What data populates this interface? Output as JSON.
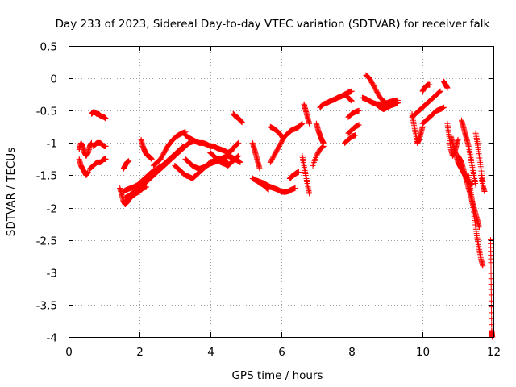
{
  "chart_data": {
    "type": "scatter",
    "title": "Day 233 of 2023, Sidereal Day-to-day VTEC variation (SDTVAR) for receiver falk",
    "xlabel": "GPS time / hours",
    "ylabel": "SDTVAR / TECUs",
    "xlim": [
      0,
      12
    ],
    "ylim": [
      -4,
      0.5
    ],
    "xticks": [
      0,
      2,
      4,
      6,
      8,
      10,
      12
    ],
    "xtick_labels": [
      "0",
      "2",
      "4",
      "6",
      "8",
      "10",
      "12"
    ],
    "yticks": [
      0.5,
      0,
      -0.5,
      -1,
      -1.5,
      -2,
      -2.5,
      -3,
      -3.5,
      -4
    ],
    "ytick_labels": [
      "0.5",
      "0",
      "-0.5",
      "-1",
      "-1.5",
      "-2",
      "-2.5",
      "-3",
      "-3.5",
      "-4"
    ],
    "grid": true,
    "marker": "+",
    "color": "#ff0000",
    "segments": [
      {
        "x": [
          0.3,
          0.35,
          0.4,
          0.45,
          0.5,
          0.55,
          0.6,
          0.65
        ],
        "y": [
          -1.1,
          -1.0,
          -1.05,
          -1.15,
          -1.2,
          -1.15,
          -1.05,
          -1.0
        ]
      },
      {
        "x": [
          0.3,
          0.35,
          0.4,
          0.45,
          0.5,
          0.55
        ],
        "y": [
          -1.25,
          -1.35,
          -1.4,
          -1.45,
          -1.5,
          -1.45
        ]
      },
      {
        "x": [
          0.6,
          0.7,
          0.8,
          0.9,
          1.0,
          1.05
        ],
        "y": [
          -1.4,
          -1.35,
          -1.3,
          -1.3,
          -1.25,
          -1.25
        ]
      },
      {
        "x": [
          0.7,
          0.8,
          0.9,
          1.0,
          1.05
        ],
        "y": [
          -1.05,
          -1.0,
          -1.0,
          -1.05,
          -1.05
        ]
      },
      {
        "x": [
          0.65,
          0.7,
          0.75,
          0.8,
          0.85,
          0.9,
          1.0,
          1.05
        ],
        "y": [
          -0.55,
          -0.52,
          -0.53,
          -0.55,
          -0.55,
          -0.58,
          -0.6,
          -0.62
        ]
      },
      {
        "x": [
          1.45,
          1.5,
          1.55,
          1.6,
          1.65,
          1.7,
          1.8,
          1.9,
          2.0,
          2.1,
          2.2
        ],
        "y": [
          -1.7,
          -1.8,
          -1.9,
          -1.95,
          -1.92,
          -1.88,
          -1.82,
          -1.78,
          -1.75,
          -1.7,
          -1.68
        ]
      },
      {
        "x": [
          1.55,
          1.6,
          1.65,
          1.7
        ],
        "y": [
          -1.4,
          -1.35,
          -1.3,
          -1.28
        ]
      },
      {
        "x": [
          1.55,
          1.65,
          1.75,
          1.85,
          1.95,
          2.05,
          2.15,
          2.25,
          2.35,
          2.45,
          2.55,
          2.65,
          2.75,
          2.85,
          2.95,
          3.05,
          3.15,
          3.25
        ],
        "y": [
          -1.75,
          -1.72,
          -1.7,
          -1.68,
          -1.65,
          -1.6,
          -1.55,
          -1.5,
          -1.45,
          -1.42,
          -1.38,
          -1.35,
          -1.3,
          -1.25,
          -1.2,
          -1.15,
          -1.1,
          -1.05
        ]
      },
      {
        "x": [
          1.6,
          1.7,
          1.8,
          1.9,
          2.0,
          2.1,
          2.2,
          2.3,
          2.4,
          2.5,
          2.6,
          2.7,
          2.8,
          2.9,
          3.0,
          3.1,
          3.2,
          3.3,
          3.4,
          3.5
        ],
        "y": [
          -1.85,
          -1.82,
          -1.78,
          -1.75,
          -1.7,
          -1.65,
          -1.6,
          -1.55,
          -1.5,
          -1.45,
          -1.4,
          -1.35,
          -1.3,
          -1.25,
          -1.2,
          -1.15,
          -1.1,
          -1.05,
          -1.0,
          -0.98
        ]
      },
      {
        "x": [
          2.05,
          2.1,
          2.15,
          2.2,
          2.25,
          2.3,
          2.35
        ],
        "y": [
          -0.95,
          -1.05,
          -1.12,
          -1.18,
          -1.2,
          -1.22,
          -1.25
        ]
      },
      {
        "x": [
          2.4,
          2.5,
          2.6,
          2.7,
          2.8,
          2.9,
          3.0,
          3.1,
          3.2,
          3.3
        ],
        "y": [
          -1.35,
          -1.3,
          -1.25,
          -1.15,
          -1.05,
          -0.98,
          -0.92,
          -0.88,
          -0.85,
          -0.83
        ]
      },
      {
        "x": [
          3.3,
          3.4,
          3.5,
          3.6,
          3.7,
          3.8,
          3.9,
          4.0,
          4.1,
          4.2,
          4.3,
          4.4,
          4.5,
          4.6,
          4.7,
          4.8
        ],
        "y": [
          -0.88,
          -0.92,
          -0.95,
          -0.98,
          -1.0,
          -1.0,
          -1.02,
          -1.05,
          -1.05,
          -1.08,
          -1.1,
          -1.12,
          -1.15,
          -1.12,
          -1.05,
          -1.0
        ]
      },
      {
        "x": [
          3.0,
          3.1,
          3.2,
          3.3,
          3.4,
          3.5,
          3.6,
          3.7,
          3.8,
          3.9,
          4.0,
          4.1,
          4.2,
          4.3,
          4.4,
          4.5
        ],
        "y": [
          -1.35,
          -1.4,
          -1.45,
          -1.5,
          -1.52,
          -1.55,
          -1.5,
          -1.45,
          -1.4,
          -1.35,
          -1.3,
          -1.28,
          -1.25,
          -1.25,
          -1.28,
          -1.3
        ]
      },
      {
        "x": [
          3.3,
          3.4,
          3.5,
          3.6,
          3.7,
          3.8,
          3.9,
          4.0,
          4.1,
          4.2,
          4.3,
          4.4,
          4.5,
          4.6,
          4.7,
          4.8,
          4.85
        ],
        "y": [
          -1.25,
          -1.3,
          -1.35,
          -1.38,
          -1.4,
          -1.38,
          -1.35,
          -1.32,
          -1.3,
          -1.28,
          -1.25,
          -1.22,
          -1.2,
          -1.22,
          -1.25,
          -1.28,
          -1.3
        ]
      },
      {
        "x": [
          4.0,
          4.1,
          4.2,
          4.3,
          4.4,
          4.5,
          4.6,
          4.7,
          4.8
        ],
        "y": [
          -1.15,
          -1.2,
          -1.25,
          -1.3,
          -1.32,
          -1.35,
          -1.3,
          -1.25,
          -1.2
        ]
      },
      {
        "x": [
          4.65,
          4.7,
          4.75,
          4.8,
          4.85,
          4.9
        ],
        "y": [
          -0.55,
          -0.58,
          -0.6,
          -0.62,
          -0.65,
          -0.68
        ]
      },
      {
        "x": [
          5.2,
          5.25,
          5.3,
          5.35,
          5.4
        ],
        "y": [
          -1.0,
          -1.1,
          -1.2,
          -1.3,
          -1.4
        ]
      },
      {
        "x": [
          5.2,
          5.3,
          5.4,
          5.5,
          5.6,
          5.7,
          5.8,
          5.9,
          6.0,
          6.1,
          6.2,
          6.3,
          6.4
        ],
        "y": [
          -1.55,
          -1.58,
          -1.6,
          -1.62,
          -1.65,
          -1.68,
          -1.7,
          -1.72,
          -1.75,
          -1.76,
          -1.75,
          -1.72,
          -1.7
        ]
      },
      {
        "x": [
          5.35,
          5.4,
          5.45,
          5.5,
          5.55,
          5.6,
          5.65
        ],
        "y": [
          -1.6,
          -1.62,
          -1.63,
          -1.65,
          -1.67,
          -1.7,
          -1.72
        ]
      },
      {
        "x": [
          5.7,
          5.8,
          5.9,
          6.0,
          6.1,
          6.2,
          6.3
        ],
        "y": [
          -1.3,
          -1.2,
          -1.1,
          -1.0,
          -0.9,
          -0.85,
          -0.8
        ]
      },
      {
        "x": [
          5.7,
          5.8,
          5.9,
          6.0,
          6.05
        ],
        "y": [
          -0.75,
          -0.78,
          -0.82,
          -0.88,
          -0.92
        ]
      },
      {
        "x": [
          6.2,
          6.3,
          6.4,
          6.5,
          6.6
        ],
        "y": [
          -0.85,
          -0.8,
          -0.78,
          -0.75,
          -0.7
        ]
      },
      {
        "x": [
          6.25,
          6.3,
          6.35,
          6.4,
          6.45,
          6.5
        ],
        "y": [
          -1.55,
          -1.52,
          -1.5,
          -1.48,
          -1.46,
          -1.45
        ]
      },
      {
        "x": [
          6.6,
          6.65,
          6.7,
          6.75,
          6.8
        ],
        "y": [
          -1.2,
          -1.35,
          -1.5,
          -1.65,
          -1.78
        ]
      },
      {
        "x": [
          6.65,
          6.7,
          6.75,
          6.8
        ],
        "y": [
          -0.4,
          -0.5,
          -0.6,
          -0.7
        ]
      },
      {
        "x": [
          6.9,
          7.0,
          7.1,
          7.2
        ],
        "y": [
          -1.35,
          -1.2,
          -1.1,
          -1.05
        ]
      },
      {
        "x": [
          7.0,
          7.05,
          7.1,
          7.15,
          7.2
        ],
        "y": [
          -0.7,
          -0.8,
          -0.88,
          -0.95,
          -1.0
        ]
      },
      {
        "x": [
          7.1,
          7.2,
          7.3,
          7.4,
          7.5,
          7.6,
          7.7,
          7.8,
          7.9,
          8.0
        ],
        "y": [
          -0.45,
          -0.4,
          -0.38,
          -0.35,
          -0.33,
          -0.3,
          -0.28,
          -0.25,
          -0.22,
          -0.2
        ]
      },
      {
        "x": [
          7.8,
          7.9,
          8.0
        ],
        "y": [
          -0.25,
          -0.3,
          -0.35
        ]
      },
      {
        "x": [
          7.8,
          7.9,
          8.0,
          8.1
        ],
        "y": [
          -1.0,
          -0.95,
          -0.9,
          -0.88
        ]
      },
      {
        "x": [
          7.9,
          8.0,
          8.1,
          8.2
        ],
        "y": [
          -0.85,
          -0.8,
          -0.75,
          -0.72
        ]
      },
      {
        "x": [
          7.9,
          8.0,
          8.1,
          8.2
        ],
        "y": [
          -0.6,
          -0.55,
          -0.52,
          -0.5
        ]
      },
      {
        "x": [
          8.3,
          8.4,
          8.5,
          8.6,
          8.7,
          8.8,
          8.9,
          9.0,
          9.1,
          9.2,
          9.3
        ],
        "y": [
          -0.3,
          -0.32,
          -0.35,
          -0.38,
          -0.4,
          -0.4,
          -0.4,
          -0.38,
          -0.36,
          -0.35,
          -0.34
        ]
      },
      {
        "x": [
          8.4,
          8.5,
          8.6,
          8.7,
          8.8,
          8.9,
          9.0,
          9.1,
          9.2,
          9.3
        ],
        "y": [
          0.05,
          0.0,
          -0.1,
          -0.2,
          -0.3,
          -0.35,
          -0.4,
          -0.42,
          -0.4,
          -0.38
        ]
      },
      {
        "x": [
          8.7,
          8.8,
          8.9,
          9.0,
          9.1,
          9.2,
          9.3
        ],
        "y": [
          -0.4,
          -0.45,
          -0.48,
          -0.45,
          -0.42,
          -0.4,
          -0.38
        ]
      },
      {
        "x": [
          9.7,
          9.75,
          9.8,
          9.85,
          9.9,
          9.95,
          10.0
        ],
        "y": [
          -0.55,
          -0.7,
          -0.85,
          -1.0,
          -0.95,
          -0.85,
          -0.75
        ]
      },
      {
        "x": [
          9.7,
          9.8,
          9.9,
          10.0,
          10.1,
          10.2,
          10.3,
          10.4,
          10.5
        ],
        "y": [
          -0.6,
          -0.55,
          -0.5,
          -0.45,
          -0.4,
          -0.35,
          -0.3,
          -0.25,
          -0.2
        ]
      },
      {
        "x": [
          10.0,
          10.1,
          10.2,
          10.3,
          10.4,
          10.5,
          10.6
        ],
        "y": [
          -0.7,
          -0.65,
          -0.6,
          -0.55,
          -0.5,
          -0.48,
          -0.45
        ]
      },
      {
        "x": [
          10.0,
          10.05,
          10.1,
          10.15,
          10.2
        ],
        "y": [
          -0.2,
          -0.15,
          -0.12,
          -0.1,
          -0.1
        ]
      },
      {
        "x": [
          10.6,
          10.65,
          10.7
        ],
        "y": [
          -0.05,
          -0.1,
          -0.15
        ]
      },
      {
        "x": [
          10.7,
          10.75,
          10.8,
          10.85,
          10.9,
          10.95,
          11.0
        ],
        "y": [
          -0.7,
          -0.9,
          -1.1,
          -1.2,
          -1.15,
          -1.05,
          -0.95
        ]
      },
      {
        "x": [
          10.8,
          10.85,
          10.9,
          10.95,
          11.0,
          11.05,
          11.1,
          11.15,
          11.2,
          11.25,
          11.3,
          11.35,
          11.4
        ],
        "y": [
          -0.9,
          -1.0,
          -1.1,
          -1.2,
          -1.3,
          -1.35,
          -1.4,
          -1.45,
          -1.5,
          -1.55,
          -1.6,
          -1.62,
          -1.65
        ]
      },
      {
        "x": [
          11.0,
          11.05,
          11.1,
          11.15,
          11.2,
          11.25,
          11.3,
          11.35,
          11.4,
          11.45,
          11.5,
          11.55,
          11.6
        ],
        "y": [
          -1.2,
          -1.25,
          -1.3,
          -1.4,
          -1.5,
          -1.6,
          -1.7,
          -1.8,
          -1.9,
          -2.0,
          -2.1,
          -2.2,
          -2.3
        ]
      },
      {
        "x": [
          11.1,
          11.15,
          11.2,
          11.25,
          11.3,
          11.35,
          11.4,
          11.45,
          11.5
        ],
        "y": [
          -0.65,
          -0.75,
          -0.85,
          -0.95,
          -1.05,
          -1.2,
          -1.35,
          -1.5,
          -1.65
        ]
      },
      {
        "x": [
          11.3,
          11.35,
          11.4,
          11.45,
          11.5,
          11.55,
          11.6,
          11.65,
          11.7
        ],
        "y": [
          -1.5,
          -1.7,
          -1.9,
          -2.1,
          -2.3,
          -2.5,
          -2.65,
          -2.8,
          -2.9
        ]
      },
      {
        "x": [
          11.5,
          11.55,
          11.6,
          11.65,
          11.7
        ],
        "y": [
          -0.85,
          -1.0,
          -1.2,
          -1.4,
          -1.6
        ]
      },
      {
        "x": [
          11.65,
          11.7,
          11.75
        ],
        "y": [
          -1.5,
          -1.65,
          -1.75
        ]
      },
      {
        "x": [
          11.92,
          11.93,
          11.94,
          11.95,
          11.96,
          11.97
        ],
        "y": [
          -2.5,
          -2.85,
          -3.35,
          -3.9,
          -3.95,
          -4.0
        ]
      }
    ]
  }
}
